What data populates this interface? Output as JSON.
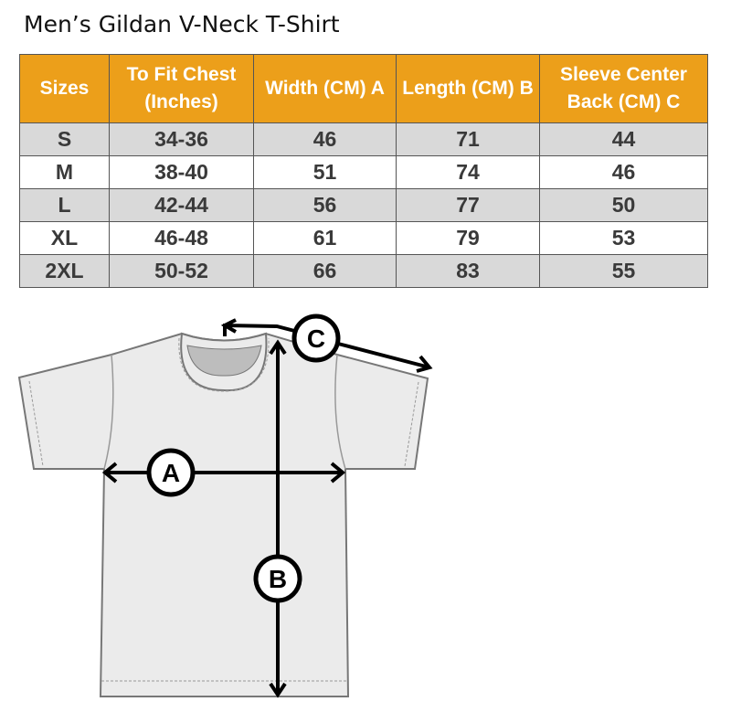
{
  "title": "Men’s Gildan V-Neck T-Shirt",
  "table": {
    "headers": [
      "Sizes",
      "To Fit Chest (Inches)",
      "Width (CM) A",
      "Length  (CM) B",
      "Sleeve Center Back (CM) C"
    ],
    "rows": [
      [
        "S",
        "34-36",
        "46",
        "71",
        "44"
      ],
      [
        "M",
        "38-40",
        "51",
        "74",
        "46"
      ],
      [
        "L",
        "42-44",
        "56",
        "77",
        "50"
      ],
      [
        "XL",
        "46-48",
        "61",
        "79",
        "53"
      ],
      [
        "2XL",
        "50-52",
        "66",
        "83",
        "55"
      ]
    ]
  },
  "diagram": {
    "labels": [
      "A",
      "B",
      "C"
    ]
  },
  "colors": {
    "header": "#EC9F1A",
    "row_alt": "#D9D9D9",
    "shirt": "#EBEBEB"
  }
}
